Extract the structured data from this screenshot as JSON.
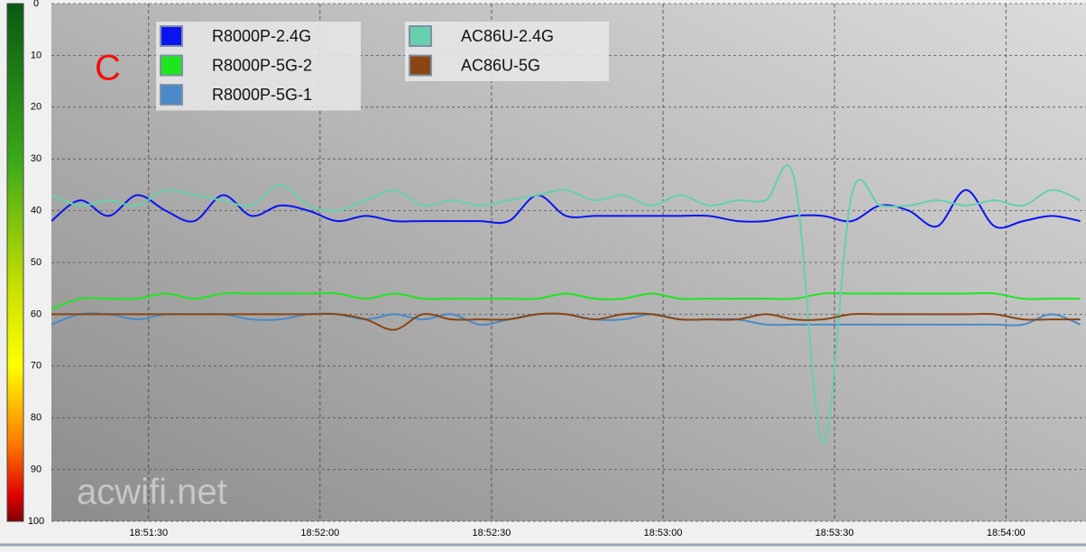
{
  "chart_data": {
    "type": "line",
    "annotation": "C",
    "watermark": "acwifi.net",
    "x": [
      "18:51:13",
      "18:51:18",
      "18:51:23",
      "18:51:28",
      "18:51:33",
      "18:51:38",
      "18:51:43",
      "18:51:48",
      "18:51:53",
      "18:51:58",
      "18:52:03",
      "18:52:08",
      "18:52:13",
      "18:52:18",
      "18:52:23",
      "18:52:28",
      "18:52:33",
      "18:52:38",
      "18:52:43",
      "18:52:48",
      "18:52:53",
      "18:52:58",
      "18:53:03",
      "18:53:08",
      "18:53:13",
      "18:53:18",
      "18:53:23",
      "18:53:28",
      "18:53:33",
      "18:53:38",
      "18:53:43",
      "18:53:48",
      "18:53:53",
      "18:53:58",
      "18:54:03",
      "18:54:08",
      "18:54:13"
    ],
    "xlim": [
      "18:51:13",
      "18:54:14"
    ],
    "xticks": [
      "18:51:30",
      "18:52:00",
      "18:52:30",
      "18:53:00",
      "18:53:30",
      "18:54:00"
    ],
    "ylim": [
      0,
      100
    ],
    "y_inverted": true,
    "yticks": [
      0,
      10,
      20,
      30,
      40,
      50,
      60,
      70,
      80,
      90,
      100
    ],
    "grid": true,
    "series": [
      {
        "name": "R8000P-2.4G",
        "color": "#0a14f0",
        "values": [
          42,
          38,
          41,
          37,
          40,
          42,
          37,
          41,
          39,
          40,
          42,
          41,
          42,
          42,
          42,
          42,
          42,
          37,
          41,
          41,
          41,
          41,
          41,
          41,
          42,
          42,
          41,
          41,
          42,
          39,
          40,
          43,
          36,
          43,
          42,
          41,
          42
        ]
      },
      {
        "name": "R8000P-5G-2",
        "color": "#1ee61e",
        "values": [
          59,
          57,
          57,
          57,
          56,
          57,
          56,
          56,
          56,
          56,
          56,
          57,
          56,
          57,
          57,
          57,
          57,
          57,
          56,
          57,
          57,
          56,
          57,
          57,
          57,
          57,
          57,
          56,
          56,
          56,
          56,
          56,
          56,
          56,
          57,
          57,
          57
        ]
      },
      {
        "name": "R8000P-5G-1",
        "color": "#4a8ac8",
        "values": [
          62,
          60,
          60,
          61,
          60,
          60,
          60,
          61,
          61,
          60,
          60,
          61,
          60,
          61,
          60,
          62,
          61,
          60,
          60,
          61,
          61,
          60,
          61,
          61,
          61,
          62,
          62,
          62,
          62,
          62,
          62,
          62,
          62,
          62,
          62,
          60,
          62
        ]
      },
      {
        "name": "AC86U-2.4G",
        "color": "#66d0ac",
        "values": [
          37,
          39,
          38,
          39,
          36,
          37,
          38,
          39,
          35,
          39,
          40,
          38,
          36,
          39,
          38,
          39,
          38,
          37,
          36,
          38,
          37,
          39,
          37,
          39,
          38,
          38,
          34,
          85,
          37,
          39,
          39,
          38,
          39,
          38,
          39,
          36,
          38
        ]
      },
      {
        "name": "AC86U-5G",
        "color": "#8b4513",
        "values": [
          60,
          60,
          60,
          60,
          60,
          60,
          60,
          60,
          60,
          60,
          60,
          61,
          63,
          60,
          61,
          61,
          61,
          60,
          60,
          61,
          60,
          60,
          61,
          61,
          61,
          60,
          61,
          61,
          60,
          60,
          60,
          60,
          60,
          60,
          61,
          61,
          61
        ]
      }
    ]
  }
}
